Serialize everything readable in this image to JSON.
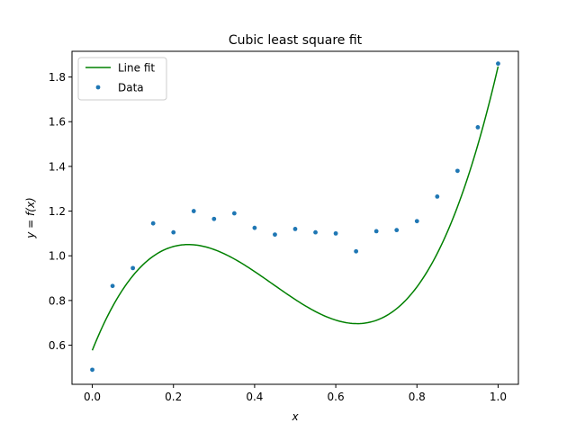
{
  "chart_data": {
    "type": "scatter",
    "title": "Cubic least square fit",
    "xlabel": "x",
    "ylabel": "y = f(x)",
    "xlim": [
      -0.05,
      1.05
    ],
    "ylim": [
      0.425,
      1.915
    ],
    "xticks": [
      0.0,
      0.2,
      0.4,
      0.6,
      0.8,
      1.0
    ],
    "xtick_labels": [
      "0.0",
      "0.2",
      "0.4",
      "0.6",
      "0.8",
      "1.0"
    ],
    "yticks": [
      0.6,
      0.8,
      1.0,
      1.2,
      1.4,
      1.6,
      1.8
    ],
    "ytick_labels": [
      "0.6",
      "0.8",
      "1.0",
      "1.2",
      "1.4",
      "1.6",
      "1.8"
    ],
    "grid": false,
    "legend_position": "top-left",
    "series": [
      {
        "name": "Line fit",
        "kind": "line",
        "color": "#008000",
        "coefficients": [
          0.577,
          4.55,
          -13.1,
          9.82
        ],
        "samples": 200
      },
      {
        "name": "Data",
        "kind": "scatter",
        "color": "#1f77b4",
        "x": [
          0.0,
          0.05,
          0.1,
          0.15,
          0.2,
          0.25,
          0.3,
          0.35,
          0.4,
          0.45,
          0.5,
          0.55,
          0.6,
          0.65,
          0.7,
          0.75,
          0.8,
          0.85,
          0.9,
          0.95,
          1.0
        ],
        "y": [
          0.49,
          0.865,
          0.945,
          1.145,
          1.105,
          1.2,
          1.165,
          1.19,
          1.125,
          1.095,
          1.12,
          1.105,
          1.1,
          1.02,
          1.11,
          1.115,
          1.155,
          1.265,
          1.38,
          1.575,
          1.86
        ]
      }
    ]
  }
}
